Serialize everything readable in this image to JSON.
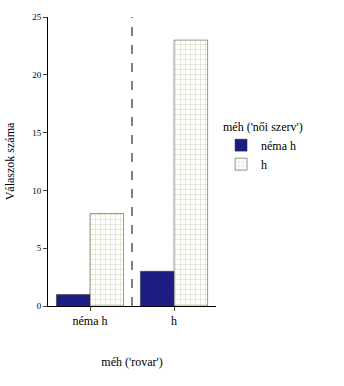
{
  "chart_data": {
    "type": "bar",
    "x_label": "méh ('rovar')",
    "y_label": "Válaszok száma",
    "legend_title": "méh ('női szerv')",
    "categories": [
      "néma h",
      "h"
    ],
    "series": [
      {
        "name": "néma h",
        "color": "#1c1c84",
        "values": [
          1,
          3
        ]
      },
      {
        "name": "h",
        "color": "#ffffb0",
        "values": [
          8,
          23
        ]
      }
    ],
    "ylim": [
      0,
      25
    ],
    "yticks": [
      0,
      5,
      10,
      15,
      20,
      25
    ],
    "grid": false,
    "legend": "right"
  }
}
